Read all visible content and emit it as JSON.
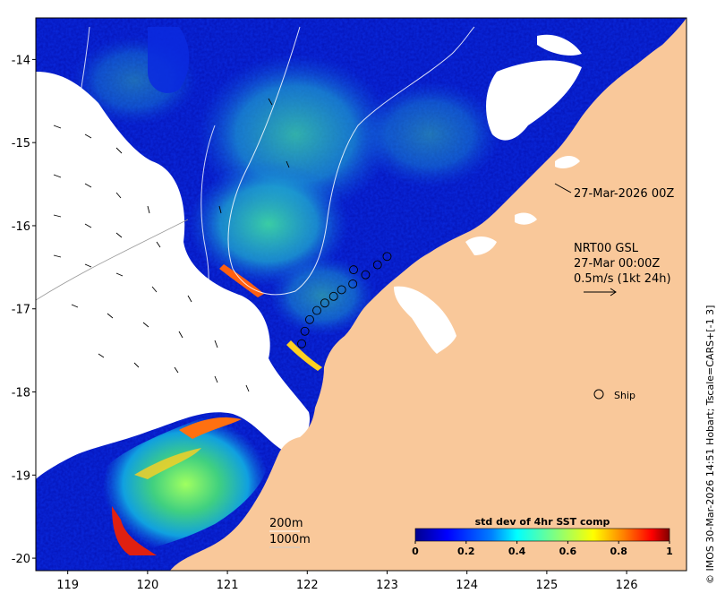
{
  "map": {
    "x_ticks": [
      "119",
      "120",
      "121",
      "122",
      "123",
      "124",
      "125",
      "126"
    ],
    "y_ticks": [
      "-14",
      "-15",
      "-16",
      "-17",
      "-18",
      "-19",
      "-20"
    ],
    "x_range": [
      118.6,
      126.75
    ],
    "y_range": [
      -20.15,
      -13.5
    ],
    "colors": {
      "land": "#f9c89a",
      "cloud": "#ffffff",
      "frame": "#000000"
    }
  },
  "annotations": {
    "time_label": "27-Mar-2026 00Z",
    "current_title": "NRT00 GSL",
    "current_time": "27-Mar 00:00Z",
    "current_scale": "0.5m/s (1kt 24h)",
    "ship_label": "Ship",
    "contour_200": "200m",
    "contour_1000": "1000m",
    "credit": "© IMOS 30-Mar-2026 14:51 Hobart; Tscale=CARS+[-1 3]"
  },
  "ship_track": [
    [
      121.93,
      -17.42
    ],
    [
      121.97,
      -17.27
    ],
    [
      122.03,
      -17.13
    ],
    [
      122.12,
      -17.02
    ],
    [
      122.22,
      -16.93
    ],
    [
      122.33,
      -16.85
    ],
    [
      122.43,
      -16.77
    ],
    [
      122.57,
      -16.7
    ],
    [
      122.73,
      -16.59
    ],
    [
      122.88,
      -16.47
    ],
    [
      123.0,
      -16.37
    ],
    [
      122.58,
      -16.53
    ]
  ],
  "chart_data": {
    "type": "heatmap",
    "title": "std dev of 4hr SST comp",
    "colorbar_ticks": [
      "0",
      "0.2",
      "0.4",
      "0.6",
      "0.8",
      "1"
    ],
    "colorbar_range": [
      0,
      1
    ],
    "colormap": [
      "#00008f",
      "#0000ff",
      "#0080ff",
      "#00ffff",
      "#80ff80",
      "#ffff00",
      "#ff8000",
      "#ff0000",
      "#800000"
    ]
  }
}
